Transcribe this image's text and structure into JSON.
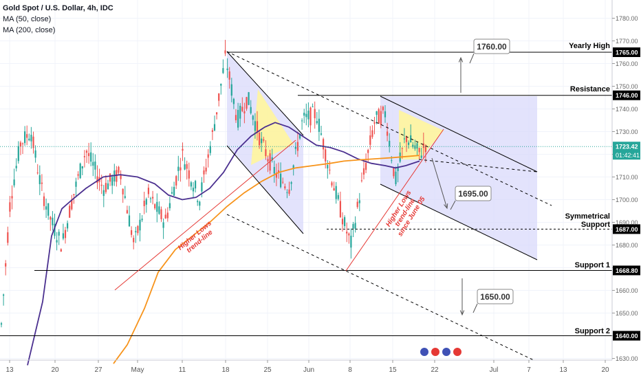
{
  "header": {
    "symbol": "Gold Spot / U.S. Dollar, 4h, IDC",
    "indicators": [
      "MA (50, close)",
      "MA (200, close)"
    ]
  },
  "colors": {
    "candle_up": "#26a69a",
    "candle_down": "#ef5350",
    "ma50": "#4a2f8f",
    "ma200": "#f7931a",
    "channel_fill": "#d9d9fb",
    "triangle_fill": "#fff59d",
    "trend_line": "#e53935",
    "last_price_line": "#26a69a"
  },
  "chart_data": {
    "type": "line",
    "title": "Gold Spot / U.S. Dollar, 4h, IDC",
    "xlabel": "",
    "ylabel": "",
    "ylim": [
      1627.7,
      1787.9
    ],
    "x_ticks": [
      "13",
      "20",
      "27",
      "May",
      "11",
      "18",
      "25",
      "Jun",
      "8",
      "15",
      "22",
      "Jul",
      "7",
      "13",
      "20"
    ],
    "y_ticks": [
      1630,
      1640,
      1650,
      1660,
      1670,
      1680,
      1690,
      1700,
      1710,
      1720,
      1730,
      1740,
      1750,
      1760,
      1770,
      1780
    ],
    "grid": true,
    "series": [
      {
        "name": "MA (50, close)",
        "points": [
          [
            40,
            1627.0
          ],
          [
            62,
            1655.0
          ],
          [
            75,
            1684.0
          ],
          [
            90,
            1696.0
          ],
          [
            105,
            1700.0
          ],
          [
            125,
            1705.0
          ],
          [
            150,
            1710.0
          ],
          [
            175,
            1711.0
          ],
          [
            200,
            1710.0
          ],
          [
            225,
            1707.0
          ],
          [
            245,
            1702.0
          ],
          [
            265,
            1700.0
          ],
          [
            285,
            1701.0
          ],
          [
            305,
            1705.0
          ],
          [
            325,
            1712.0
          ],
          [
            345,
            1722.0
          ],
          [
            365,
            1728.0
          ],
          [
            385,
            1732.0
          ],
          [
            400,
            1734.0
          ],
          [
            420,
            1732.0
          ],
          [
            440,
            1728.0
          ],
          [
            460,
            1724.0
          ],
          [
            480,
            1723.0
          ],
          [
            500,
            1721.0
          ],
          [
            520,
            1718.0
          ],
          [
            540,
            1716.0
          ],
          [
            560,
            1715.0
          ],
          [
            575,
            1714.0
          ],
          [
            590,
            1715.0
          ],
          [
            610,
            1717.0
          ]
        ]
      },
      {
        "name": "MA (200, close)",
        "points": [
          [
            165,
            1627.7
          ],
          [
            185,
            1636.0
          ],
          [
            210,
            1652.0
          ],
          [
            230,
            1668.0
          ],
          [
            255,
            1678.0
          ],
          [
            280,
            1684.0
          ],
          [
            305,
            1690.0
          ],
          [
            330,
            1697.0
          ],
          [
            355,
            1703.0
          ],
          [
            380,
            1708.0
          ],
          [
            405,
            1712.0
          ],
          [
            430,
            1714.0
          ],
          [
            455,
            1715.0
          ],
          [
            480,
            1716.0
          ],
          [
            500,
            1717.0
          ],
          [
            520,
            1717.5
          ],
          [
            545,
            1718.0
          ],
          [
            570,
            1718.5
          ],
          [
            590,
            1719.0
          ],
          [
            610,
            1719.5
          ]
        ]
      }
    ],
    "price_labels": [
      {
        "value": 1765.0,
        "label": "1765.00"
      },
      {
        "value": 1746.0,
        "label": "1746.00"
      },
      {
        "value": 1723.42,
        "label": "1723.42",
        "countdown": "01:42:41"
      },
      {
        "value": 1687.0,
        "label": "1687.00"
      },
      {
        "value": 1668.8,
        "label": "1668.80"
      },
      {
        "value": 1640.0,
        "label": "1640.00"
      }
    ],
    "annotations": {
      "levels": [
        {
          "text": "Yearly High",
          "value": 1765.0
        },
        {
          "text": "Resistance",
          "value": 1746.0
        },
        {
          "text": "Symmetrical",
          "value": 1687.0
        },
        {
          "text": "Support",
          "value": 1687.0
        },
        {
          "text": "Support 1",
          "value": 1668.8
        },
        {
          "text": "Support 2",
          "value": 1640.0
        }
      ],
      "callouts": [
        "1760.00",
        "1695.00",
        "1650.00"
      ],
      "trend_labels": [
        {
          "lines": [
            "Higher Lows",
            "trend-line"
          ]
        },
        {
          "lines": [
            "Higher Lows",
            "trend-line",
            "since June 05"
          ]
        }
      ]
    }
  }
}
